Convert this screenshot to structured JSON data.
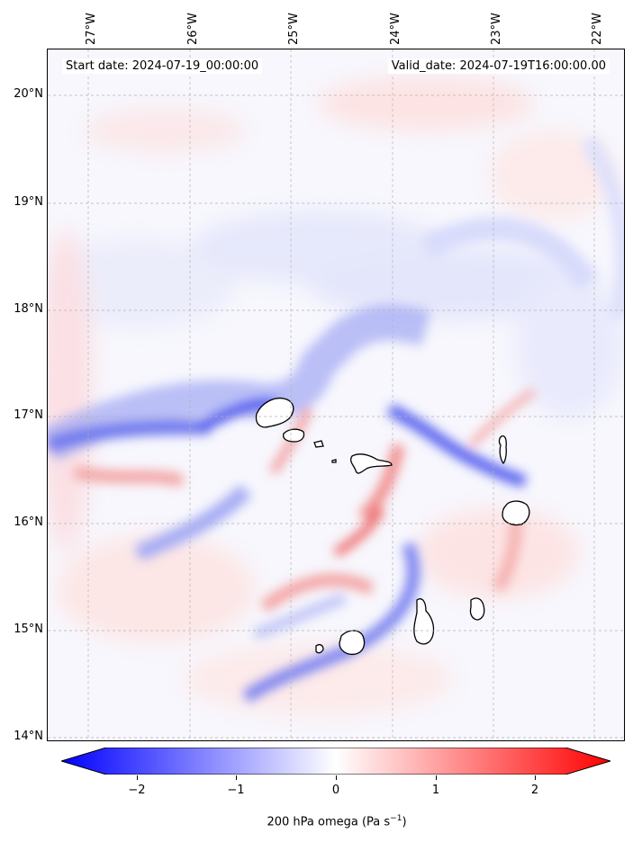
{
  "map": {
    "start_date_text": "Start date: 2024-07-19_00:00:00",
    "valid_date_text": "Valid_date: 2024-07-19T16:00:00.00",
    "lon_labels": [
      "27°W",
      "26°W",
      "25°W",
      "24°W",
      "23°W",
      "22°W"
    ],
    "lat_labels": [
      "20°N",
      "19°N",
      "18°N",
      "17°N",
      "16°N",
      "15°N",
      "14°N"
    ],
    "extent": {
      "lon_min": -27.4,
      "lon_max": -21.7,
      "lat_min": 13.95,
      "lat_max": 20.4
    },
    "islands": [
      "Santo Antão",
      "São Vicente",
      "Santa Luzia",
      "Branco",
      "Raso",
      "São Nicolau",
      "Sal",
      "Boa Vista",
      "Maio",
      "Santiago",
      "Fogo",
      "Brava"
    ]
  },
  "colorbar": {
    "label": "200 hPa omega (Pa s",
    "label_sup": "−1",
    "label_end": ")",
    "ticks": [
      "−2",
      "−1",
      "0",
      "1",
      "2"
    ],
    "range": [
      -2.5,
      2.5
    ],
    "min_color": "#0000ff",
    "mid_color": "#ffffff",
    "max_color": "#ff0000"
  }
}
